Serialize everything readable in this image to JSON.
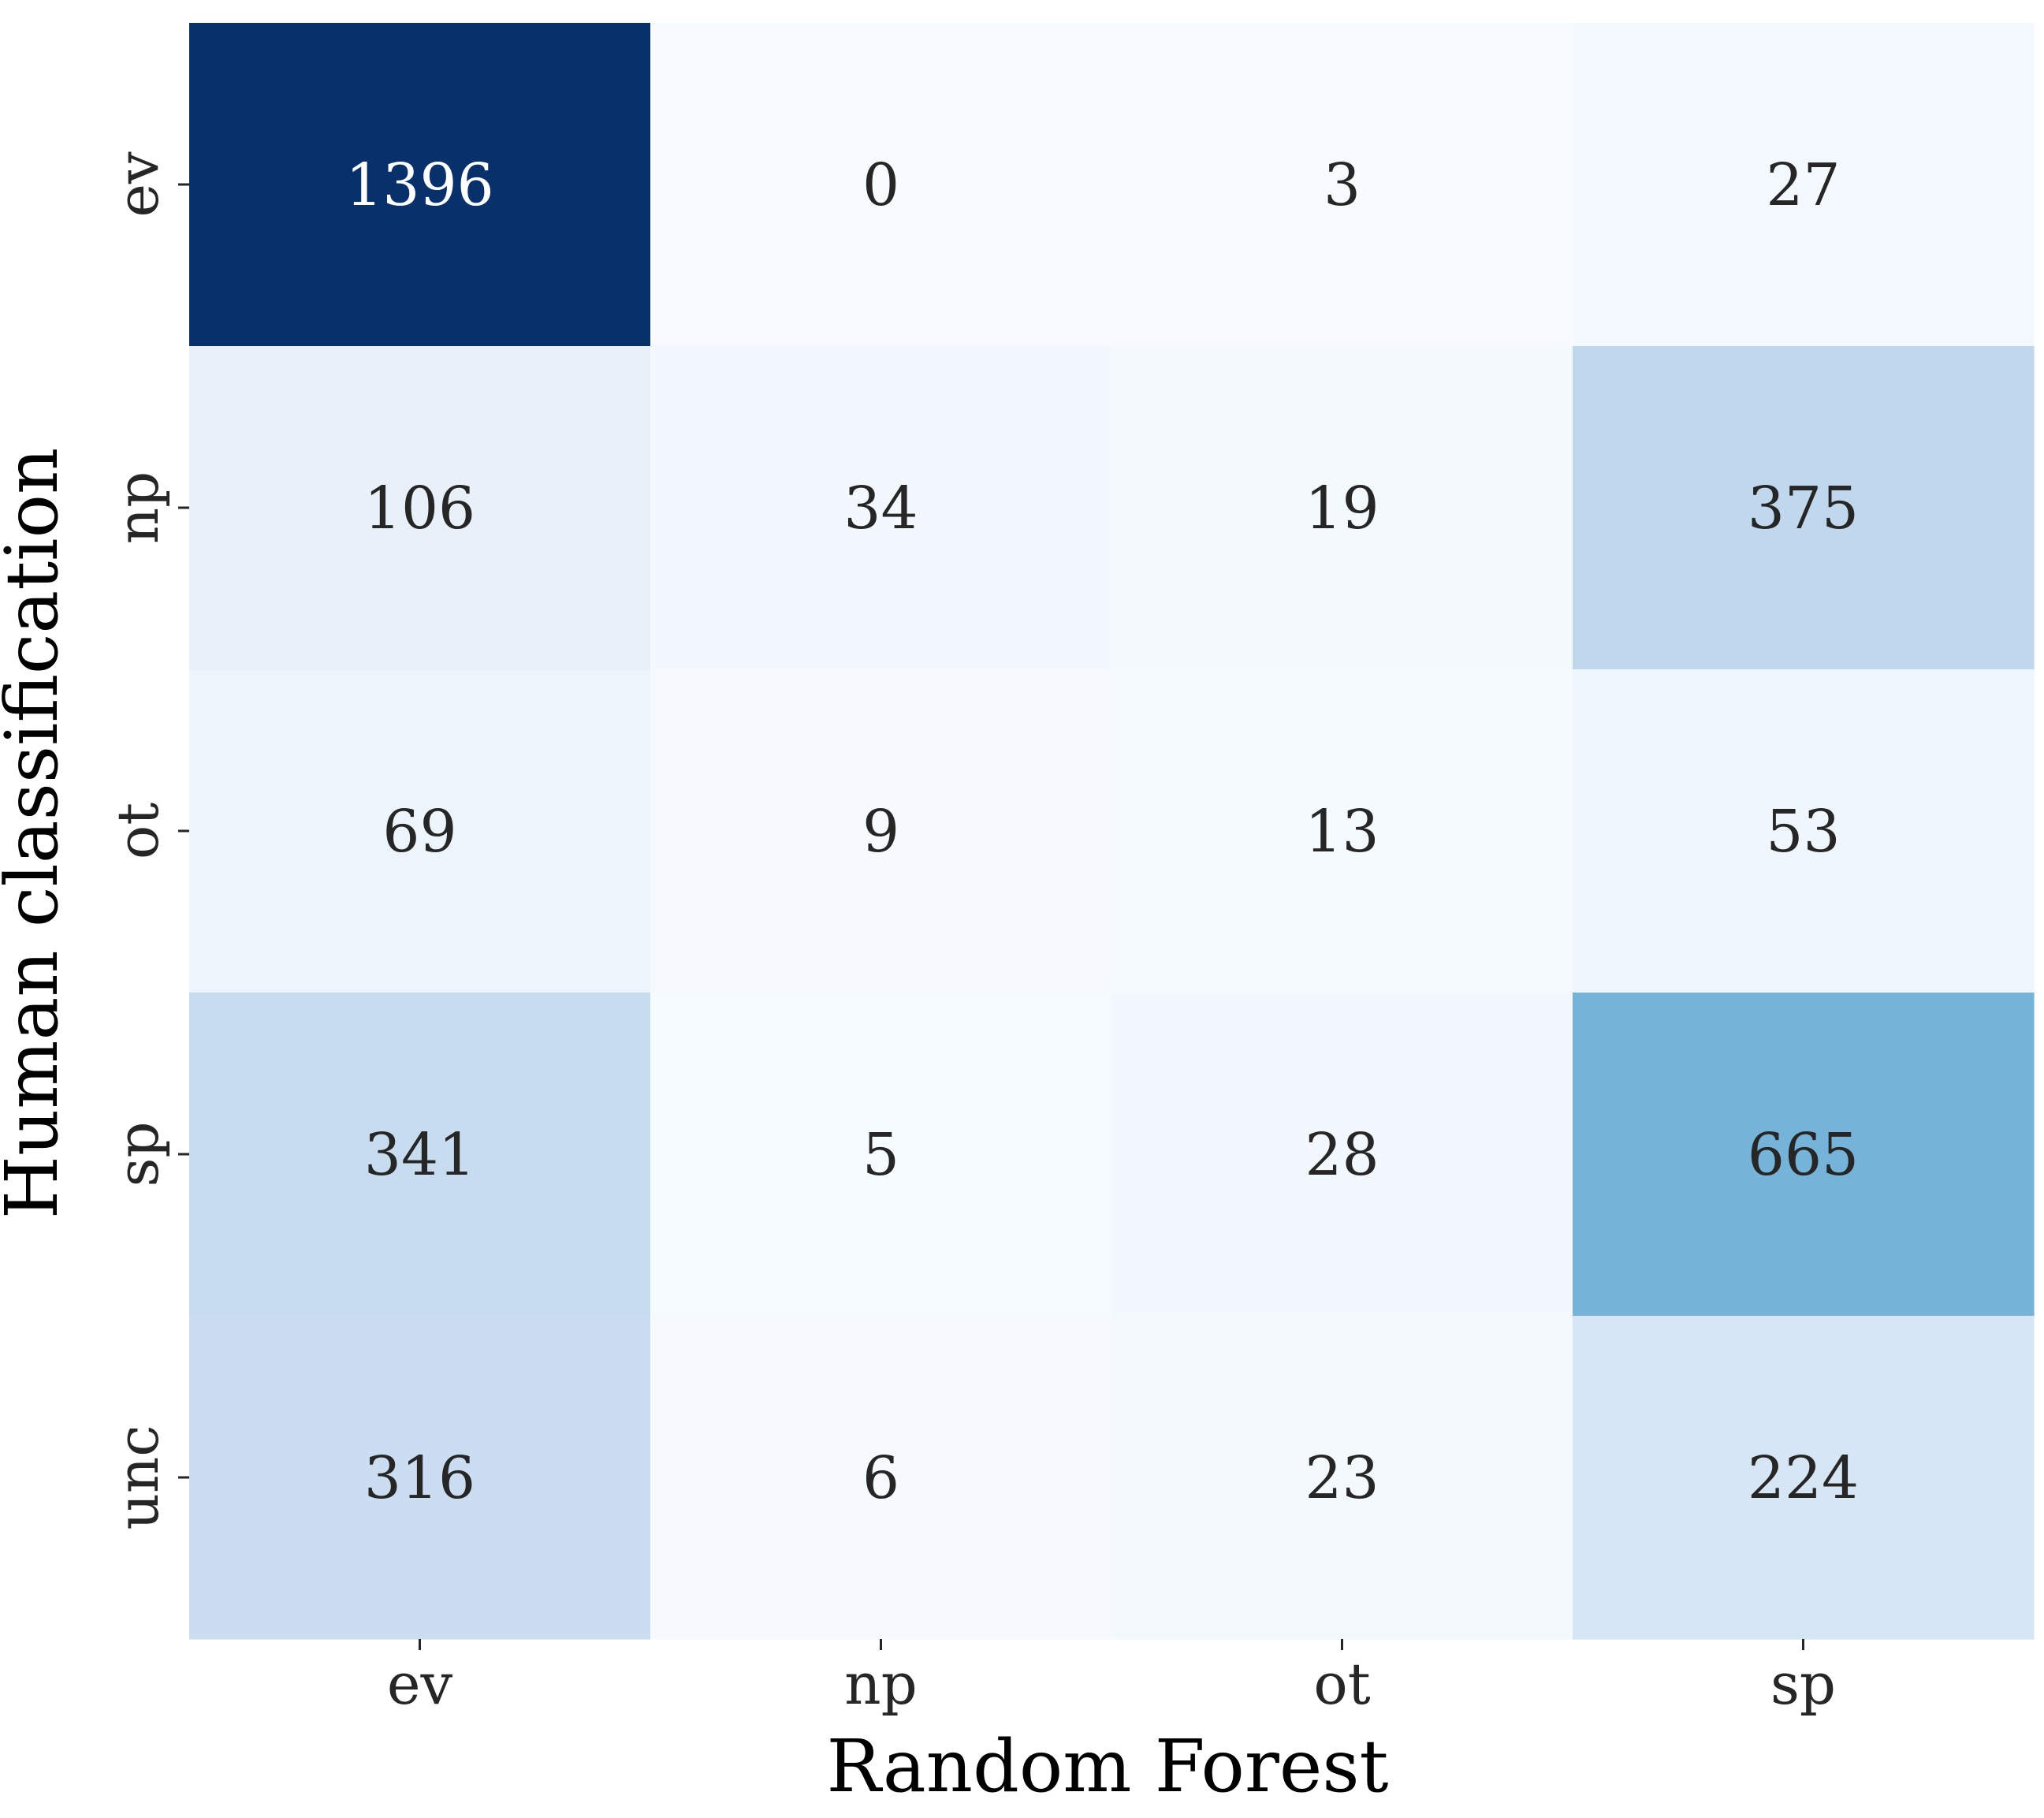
{
  "chart_data": {
    "type": "heatmap",
    "title": "",
    "xlabel": "Random Forest",
    "ylabel": "Human classification",
    "x_categories": [
      "ev",
      "np",
      "ot",
      "sp"
    ],
    "y_categories": [
      "ev",
      "np",
      "ot",
      "sp",
      "unc"
    ],
    "values": [
      [
        1396,
        0,
        3,
        27
      ],
      [
        106,
        34,
        19,
        375
      ],
      [
        69,
        9,
        13,
        53
      ],
      [
        341,
        5,
        28,
        665
      ],
      [
        316,
        6,
        23,
        224
      ]
    ],
    "colormap": "Blues",
    "color_range": [
      0,
      1396
    ],
    "colorbar": false,
    "grid": false,
    "colors": {
      "low": "#f7fbff",
      "high": "#08306b",
      "text_dark": "#262626",
      "text_light": "#ffffff"
    }
  }
}
